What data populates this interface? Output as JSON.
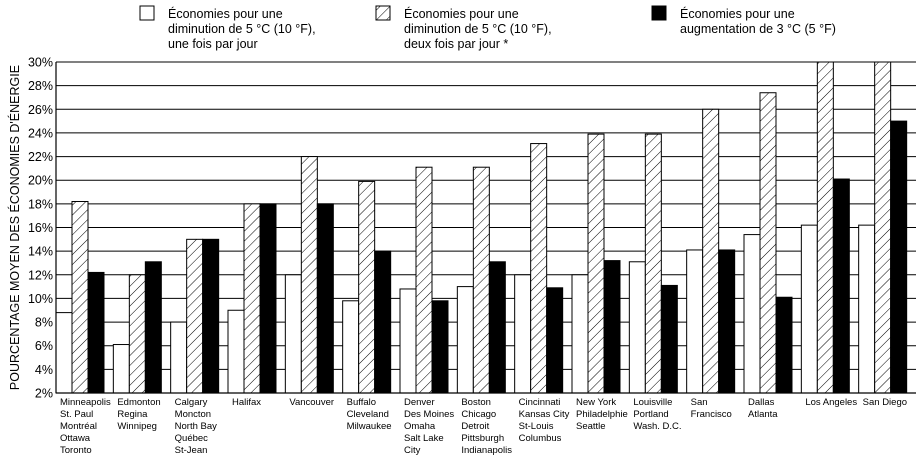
{
  "chart_data": {
    "type": "bar",
    "ylabel": "POURCENTAGE MOYEN DES ÉCONOMIES D'ÉNERGIE",
    "ylim": [
      2,
      30
    ],
    "yticks": [
      2,
      4,
      6,
      8,
      10,
      12,
      14,
      16,
      18,
      20,
      22,
      24,
      26,
      28,
      30
    ],
    "tick_suffix": "%",
    "grid": true,
    "legend_position": "top",
    "colors": {
      "white": "#ffffff",
      "black": "#000000",
      "stroke": "#000000"
    },
    "categories": [
      [
        "Minneapolis",
        "St. Paul",
        "Montréal",
        "Ottawa",
        "Toronto"
      ],
      [
        "Edmonton",
        "Regina",
        "Winnipeg"
      ],
      [
        "Calgary",
        "Moncton",
        "North Bay",
        "Québec",
        "St-Jean"
      ],
      [
        "Halifax"
      ],
      [
        "Vancouver"
      ],
      [
        "Buffalo",
        "Cleveland",
        "Milwaukee"
      ],
      [
        "Denver",
        "Des Moines",
        "Omaha",
        "Salt Lake",
        " City"
      ],
      [
        "Boston",
        "Chicago",
        "Detroit",
        "Pittsburgh",
        "Indianapolis"
      ],
      [
        "Cincinnati",
        "Kansas City",
        "St-Louis",
        "Columbus"
      ],
      [
        "New York",
        "Philadelphie",
        "Seattle"
      ],
      [
        "Louisville",
        "Portland",
        "Wash. D.C."
      ],
      [
        "San",
        "  Francisco"
      ],
      [
        "Dallas",
        "Atlanta"
      ],
      [
        "Los Angeles"
      ],
      [
        "San Diego"
      ]
    ],
    "series": [
      {
        "name": [
          "Économies pour une",
          "diminution de 5 °C (10 °F),",
          "une fois par jour"
        ],
        "pattern": "white",
        "values": [
          8.8,
          6.1,
          8.0,
          9.0,
          12.0,
          9.8,
          10.8,
          11.0,
          12.0,
          12.0,
          13.1,
          14.1,
          15.4,
          16.2,
          16.2
        ]
      },
      {
        "name": [
          "Économies pour une",
          "diminution de 5 °C (10 °F),",
          "deux fois par jour *"
        ],
        "pattern": "hatched",
        "values": [
          18.2,
          12.0,
          15.0,
          18.0,
          22.0,
          19.9,
          21.1,
          21.1,
          23.1,
          23.9,
          23.9,
          26.0,
          27.4,
          30.0,
          30.0
        ]
      },
      {
        "name": [
          "Économies pour une",
          "augmentation de 3 °C (5 °F)"
        ],
        "pattern": "black",
        "values": [
          12.2,
          13.1,
          15.0,
          18.0,
          18.0,
          14.0,
          9.8,
          13.1,
          10.9,
          13.2,
          11.1,
          14.1,
          10.1,
          20.1,
          25.0
        ]
      }
    ]
  }
}
